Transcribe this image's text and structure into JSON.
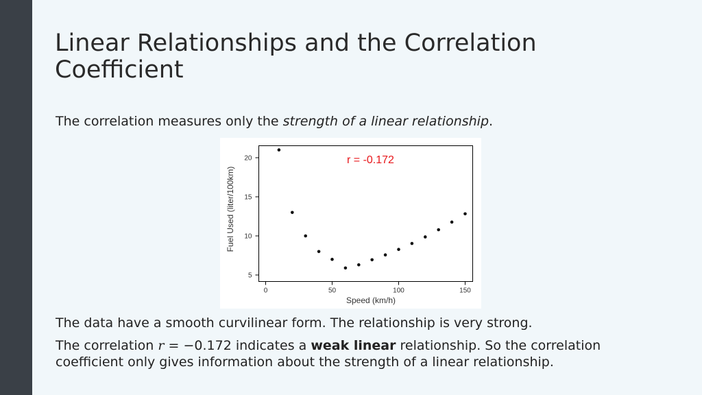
{
  "slide": {
    "title": "Linear Relationships and the Correlation Coefficient",
    "intro_prefix": "The correlation measures only the ",
    "intro_emphasis": "strength of a linear relationship",
    "intro_suffix": ".",
    "body_line1": "The data have a smooth curvilinear form. The relationship is very strong.",
    "body_line2_prefix": "The correlation ",
    "body_line2_var": "r",
    "body_line2_value": " = −0.172 indicates a ",
    "body_line2_bold": "weak linear",
    "body_line2_suffix": " relationship. So the correlation coefficient only gives information about the strength of a linear relationship."
  },
  "colors": {
    "left_bar": "#3a4047",
    "background": "#f1f7fa",
    "annotation": "#e8171b",
    "points": "#111111"
  },
  "chart_data": {
    "type": "scatter",
    "xlabel": "Speed (km/h)",
    "ylabel": "Fuel Used (liter/100km)",
    "annotation": "r = -0.172",
    "xlim": [
      0,
      160
    ],
    "ylim": [
      4.5,
      21
    ],
    "x_ticks": [
      0,
      50,
      100,
      150
    ],
    "y_ticks": [
      5,
      10,
      15,
      20
    ],
    "grid": false,
    "x": [
      10,
      20,
      30,
      40,
      50,
      60,
      70,
      80,
      90,
      100,
      110,
      120,
      130,
      140,
      150
    ],
    "y": [
      21.0,
      13.0,
      10.0,
      8.0,
      7.0,
      5.9,
      6.3,
      6.95,
      7.57,
      8.27,
      9.03,
      9.87,
      10.79,
      11.77,
      12.83
    ]
  }
}
